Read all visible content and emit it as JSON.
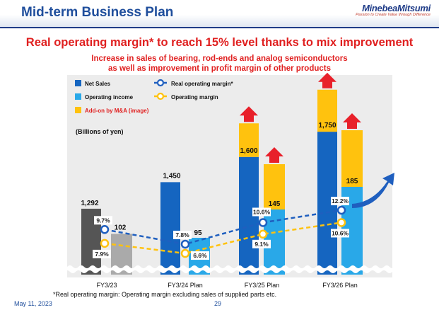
{
  "slide": {
    "title": "Mid-term Business Plan",
    "logo": "MinebeaMitsumi",
    "logo_tagline": "Passion to Create Value through Difference",
    "headline": "Real operating margin* to reach 15% level thanks to mix improvement",
    "subheadline_1": "Increase in sales of bearing, rod-ends and analog semiconductors",
    "subheadline_2": "as well as improvement in profit margin of other products",
    "footnote": "*Real operating margin: Operating margin excluding sales of supplied parts etc.",
    "date": "May 11, 2023",
    "page": "29"
  },
  "chart_data": {
    "type": "bar",
    "unit_label": "(Billions of yen)",
    "categories": [
      "FY3/23",
      "FY3/24 Plan",
      "FY3/25 Plan",
      "FY3/26 Plan"
    ],
    "series": [
      {
        "name": "Net Sales",
        "values": [
          1292,
          1450,
          1600,
          1750
        ],
        "labels": [
          "1,292",
          "1,450",
          "1,600",
          "1,750"
        ],
        "color": "#1565c0"
      },
      {
        "name": "Operating income",
        "values": [
          102,
          95,
          145,
          185
        ],
        "labels": [
          "102",
          "95",
          "145",
          "185"
        ],
        "color": "#29a8e8"
      },
      {
        "name": "Add-on by M&A (image)",
        "color": "#ffc20e"
      },
      {
        "name": "Real operating margin*",
        "values": [
          9.7,
          7.8,
          10.6,
          12.2
        ],
        "labels": [
          "9.7%",
          "7.8%",
          "10.6%",
          "12.2%"
        ],
        "color": "#1f5fbf"
      },
      {
        "name": "Operating  margin",
        "values": [
          7.9,
          6.6,
          9.1,
          10.6
        ],
        "labels": [
          "7.9%",
          "6.6%",
          "9.1%",
          "10.6%"
        ],
        "color": "#ffc20e"
      }
    ],
    "ma_addon_top": {
      "net_sales": [
        null,
        null,
        1800,
        2000
      ],
      "operating_income": [
        null,
        null,
        225,
        285
      ]
    },
    "actual_period_colors": {
      "net_sales": "#555555",
      "operating_income": "#aaaaaa"
    },
    "growth_arrow_color": "#e8202a"
  }
}
